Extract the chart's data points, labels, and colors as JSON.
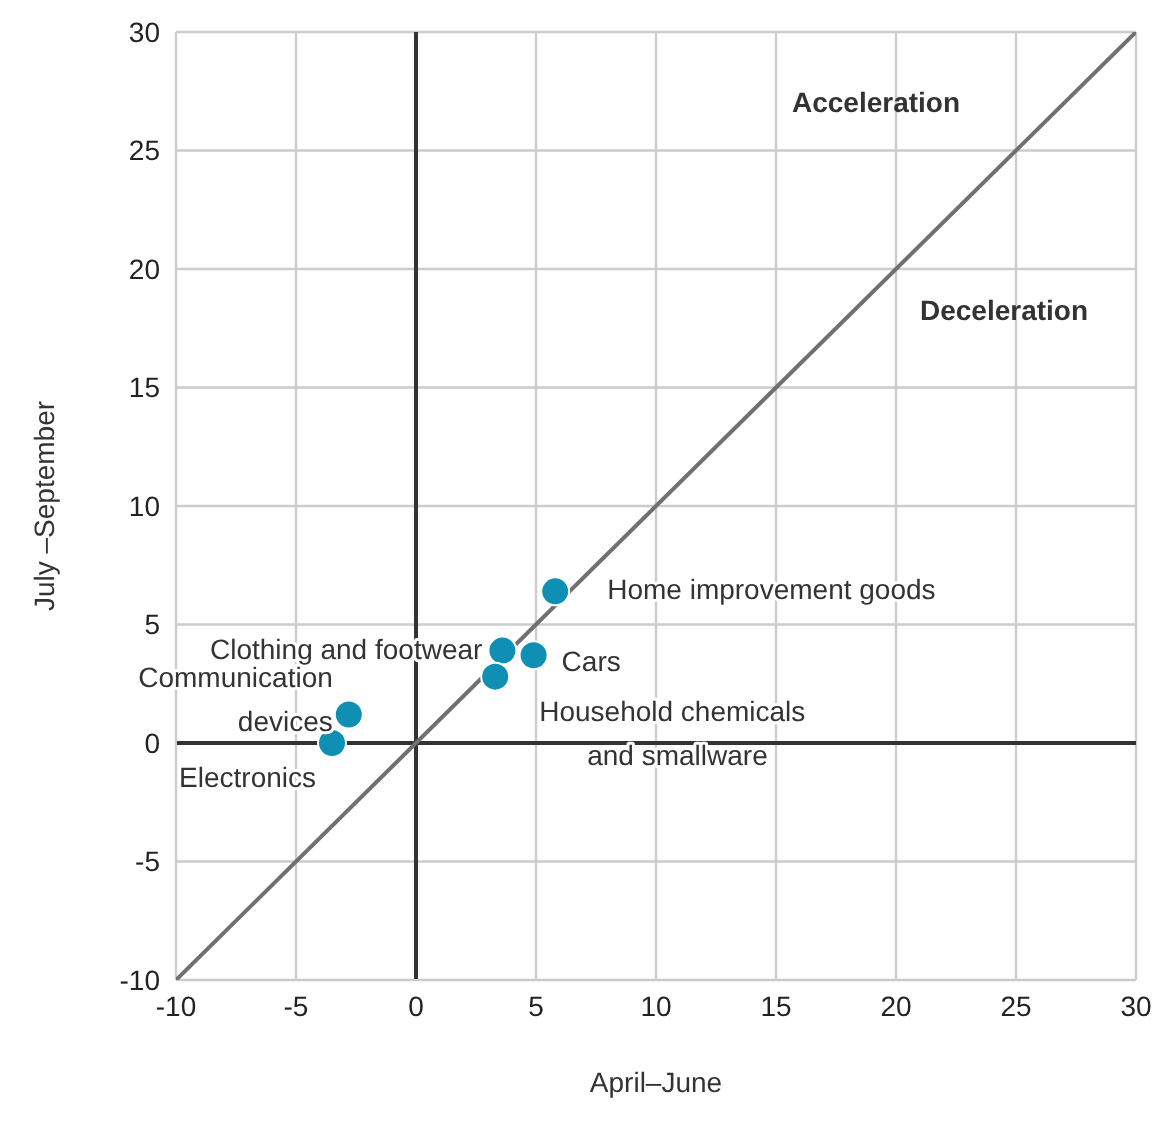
{
  "chart_data": {
    "type": "scatter",
    "xlabel": "April–June",
    "ylabel": "July –September",
    "xlim": [
      -10,
      30
    ],
    "ylim": [
      -10,
      30
    ],
    "xticks": [
      -10,
      -5,
      0,
      5,
      10,
      15,
      20,
      25,
      30
    ],
    "yticks": [
      -10,
      -5,
      0,
      5,
      10,
      15,
      20,
      25,
      30
    ],
    "grid": true,
    "marker": "circle",
    "series": [
      {
        "type": "line",
        "color": "#707070",
        "marker": "none",
        "x": [
          -10,
          30
        ],
        "values": [
          -10,
          30
        ]
      },
      {
        "type": "scatter",
        "color": "#0e8fb3",
        "x": [
          5.8,
          3.6,
          4.9,
          3.3,
          -2.8,
          -3.5
        ],
        "values": [
          6.4,
          3.9,
          3.7,
          2.8,
          1.2,
          0
        ]
      }
    ],
    "annotations": [
      {
        "text": "Home improvement goods",
        "x": 5.8,
        "y": 6.4
      },
      {
        "text": "Clothing and footwear",
        "x": 3.6,
        "y": 3.9
      },
      {
        "text": "Cars",
        "x": 4.9,
        "y": 3.7
      },
      {
        "text": "Household chemicals and smallware",
        "x": 3.3,
        "y": 2.8
      },
      {
        "text": "Communication devices",
        "x": -2.8,
        "y": 1.2
      },
      {
        "text": "Electronics",
        "x": -3.5,
        "y": 0
      },
      "Acceleration",
      "Deceleration"
    ]
  }
}
